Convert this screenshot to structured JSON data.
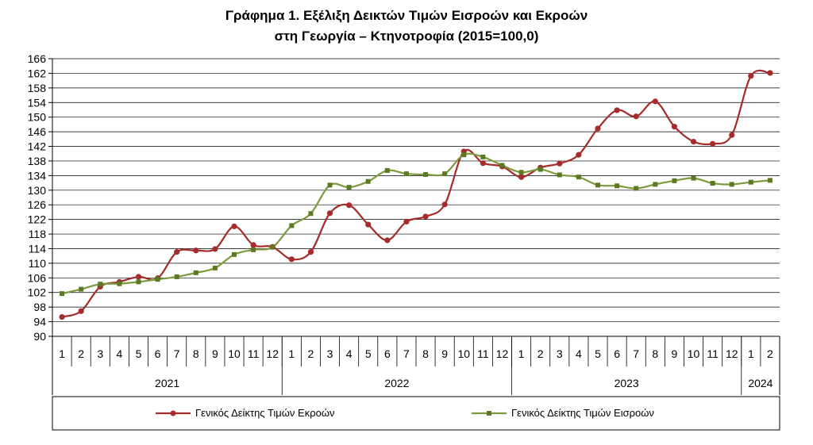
{
  "chart_data": {
    "type": "line",
    "title": "Γράφημα 1. Εξέλιξη Δεικτών Τιμών Εισροών και Εκροών",
    "subtitle": "στη Γεωργία – Κτηνοτροφία (2015=100,0)",
    "ylim": [
      90,
      166
    ],
    "yticks": [
      90,
      94,
      98,
      102,
      106,
      110,
      114,
      118,
      122,
      126,
      130,
      134,
      138,
      142,
      146,
      150,
      154,
      158,
      162,
      166
    ],
    "categories": [
      "1",
      "2",
      "3",
      "4",
      "5",
      "6",
      "7",
      "8",
      "9",
      "10",
      "11",
      "12",
      "1",
      "2",
      "3",
      "4",
      "5",
      "6",
      "7",
      "8",
      "9",
      "10",
      "11",
      "12",
      "1",
      "2",
      "3",
      "4",
      "5",
      "6",
      "7",
      "8",
      "9",
      "10",
      "11",
      "12",
      "1",
      "2"
    ],
    "years": [
      {
        "label": "2021",
        "count": 12
      },
      {
        "label": "2022",
        "count": 12
      },
      {
        "label": "2023",
        "count": 12
      },
      {
        "label": "2024",
        "count": 2
      }
    ],
    "grid": true,
    "legend_position": "bottom",
    "series": [
      {
        "name": "Γενικός Δείκτης Τιμών Εκροών",
        "color": "#A62B2B",
        "marker": "circle",
        "values": [
          95.3,
          96.9,
          103.6,
          104.9,
          106.3,
          105.9,
          113.1,
          113.5,
          113.9,
          120.1,
          115.0,
          114.5,
          111.1,
          113.1,
          123.7,
          125.9,
          120.6,
          116.3,
          121.4,
          122.8,
          126.1,
          140.6,
          137.4,
          136.5,
          133.6,
          136.2,
          137.3,
          139.7,
          146.9,
          151.9,
          150.2,
          154.3,
          147.4,
          143.3,
          142.7,
          145.1,
          161.3,
          162.1
        ]
      },
      {
        "name": "Γενικός Δείκτης Τιμών Εισροών",
        "color": "#7D9A3C",
        "marker": "square",
        "values": [
          101.7,
          102.9,
          104.3,
          104.4,
          104.9,
          105.6,
          106.3,
          107.4,
          108.7,
          112.4,
          113.7,
          114.4,
          120.3,
          123.6,
          131.4,
          130.8,
          132.4,
          135.4,
          134.5,
          134.3,
          134.5,
          139.7,
          139.1,
          136.8,
          134.9,
          135.7,
          134.2,
          133.6,
          131.4,
          131.2,
          130.5,
          131.6,
          132.6,
          133.3,
          131.9,
          131.6,
          132.2,
          132.7
        ]
      }
    ]
  }
}
